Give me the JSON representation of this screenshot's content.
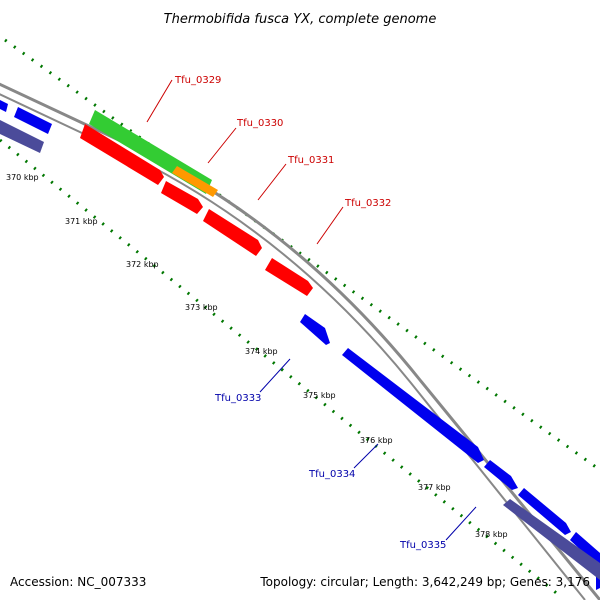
{
  "title": "Thermobifida fusca YX, complete genome",
  "footer": {
    "accession": "Accession: NC_007333",
    "summary": "Topology: circular; Length: 3,642,249 bp; Genes: 3,176"
  },
  "ticks": [
    "370 kbp",
    "371 kbp",
    "372 kbp",
    "373 kbp",
    "374 kbp",
    "375 kbp",
    "376 kbp",
    "377 kbp",
    "378 kbp"
  ],
  "genes_forward": [
    "Tfu_0329",
    "Tfu_0330",
    "Tfu_0331",
    "Tfu_0332"
  ],
  "genes_reverse": [
    "Tfu_0333",
    "Tfu_0334",
    "Tfu_0335"
  ],
  "colors": {
    "forward_cds": "#ff0000",
    "reverse_cds": "#0000ee",
    "rna_feature": "#33cc33",
    "orange_feature": "#ff9900",
    "dark_feature": "#4b4b9a",
    "backbone": "#888888",
    "gc_dots": "#007700"
  }
}
